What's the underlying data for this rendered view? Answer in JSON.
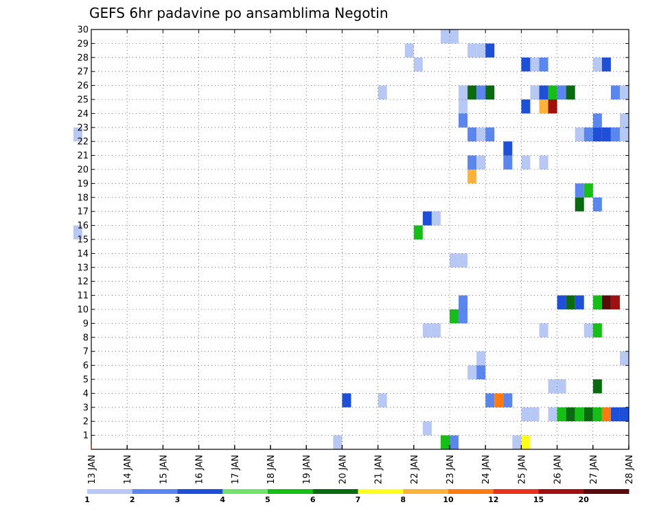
{
  "chart_data": {
    "type": "heatmap",
    "title": "GEFS 6hr padavine po ansamblima Negotin",
    "xlabel": "",
    "ylabel": "",
    "x_tick_labels": [
      "13 JAN",
      "14 JAN",
      "15 JAN",
      "16 JAN",
      "17 JAN",
      "18 JAN",
      "19 JAN",
      "20 JAN",
      "21 JAN",
      "22 JAN",
      "23 JAN",
      "24 JAN",
      "25 JAN",
      "26 JAN",
      "27 JAN",
      "28 JAN"
    ],
    "x_range_days": [
      13,
      28
    ],
    "y_tick_labels": [
      "1",
      "2",
      "3",
      "4",
      "5",
      "6",
      "7",
      "8",
      "9",
      "10",
      "11",
      "12",
      "13",
      "14",
      "15",
      "16",
      "17",
      "18",
      "19",
      "20",
      "21",
      "22",
      "23",
      "24",
      "25",
      "26",
      "27",
      "28",
      "29",
      "30"
    ],
    "y_range": [
      0,
      30
    ],
    "time_step_hours": 6,
    "grid": "dotted",
    "legend": {
      "position": "bottom",
      "labels": [
        "1",
        "2",
        "3",
        "4",
        "5",
        "6",
        "7",
        "8",
        "10",
        "12",
        "15",
        "20"
      ],
      "colors": [
        "#b8c8f5",
        "#5b86ee",
        "#1e4fd9",
        "#6fe36a",
        "#16bf16",
        "#0a6a10",
        "#ffff1e",
        "#ffb23a",
        "#ff7a10",
        "#e8321e",
        "#a01010",
        "#5a0a0a"
      ]
    },
    "cells": [
      [
        19.75,
        0,
        1
      ],
      [
        22.75,
        0,
        5
      ],
      [
        23,
        0,
        2
      ],
      [
        24.75,
        0,
        1
      ],
      [
        25,
        0,
        7
      ],
      [
        22.25,
        1,
        1
      ],
      [
        25,
        2,
        1
      ],
      [
        25.25,
        2,
        1
      ],
      [
        25.75,
        2,
        1
      ],
      [
        26,
        2,
        5
      ],
      [
        26.25,
        2,
        6
      ],
      [
        26.5,
        2,
        5
      ],
      [
        26.75,
        2,
        6
      ],
      [
        27,
        2,
        5
      ],
      [
        27.25,
        2,
        9
      ],
      [
        27.5,
        2,
        3
      ],
      [
        27.75,
        2,
        3
      ],
      [
        20,
        3,
        3
      ],
      [
        21,
        3,
        1
      ],
      [
        24,
        3,
        2
      ],
      [
        24.25,
        3,
        9
      ],
      [
        24.5,
        3,
        2
      ],
      [
        25.75,
        4,
        1
      ],
      [
        26,
        4,
        1
      ],
      [
        27,
        4,
        6
      ],
      [
        23.5,
        5,
        1
      ],
      [
        23.75,
        5,
        2
      ],
      [
        23.75,
        6,
        1
      ],
      [
        27.75,
        6,
        1
      ],
      [
        22.25,
        8,
        1
      ],
      [
        22.5,
        8,
        1
      ],
      [
        25.5,
        8,
        1
      ],
      [
        26.75,
        8,
        1
      ],
      [
        27,
        8,
        5
      ],
      [
        23,
        9,
        5
      ],
      [
        23.25,
        9,
        2
      ],
      [
        23.25,
        10,
        2
      ],
      [
        26,
        10,
        3
      ],
      [
        26.25,
        10,
        6
      ],
      [
        26.5,
        10,
        3
      ],
      [
        27,
        10,
        5
      ],
      [
        27.25,
        10,
        12
      ],
      [
        27.5,
        10,
        11
      ],
      [
        23,
        13,
        1
      ],
      [
        23.25,
        13,
        1
      ],
      [
        22,
        15,
        5
      ],
      [
        12.5,
        15,
        1
      ],
      [
        22.25,
        16,
        3
      ],
      [
        22.5,
        16,
        1
      ],
      [
        26.5,
        17,
        6
      ],
      [
        27,
        17,
        2
      ],
      [
        26.5,
        18,
        2
      ],
      [
        26.75,
        18,
        5
      ],
      [
        23.5,
        19,
        8
      ],
      [
        23.5,
        20,
        2
      ],
      [
        23.75,
        20,
        1
      ],
      [
        24.5,
        20,
        2
      ],
      [
        25,
        20,
        1
      ],
      [
        25.5,
        20,
        1
      ],
      [
        24.5,
        21,
        3
      ],
      [
        12.5,
        22,
        1
      ],
      [
        23.5,
        22,
        2
      ],
      [
        23.75,
        22,
        1
      ],
      [
        24,
        22,
        2
      ],
      [
        26.5,
        22,
        1
      ],
      [
        26.75,
        22,
        2
      ],
      [
        27,
        22,
        3
      ],
      [
        27.25,
        22,
        3
      ],
      [
        27.5,
        22,
        2
      ],
      [
        27.75,
        22,
        1
      ],
      [
        23.25,
        23,
        2
      ],
      [
        27,
        23,
        2
      ],
      [
        27.75,
        23,
        1
      ],
      [
        23.25,
        24,
        1
      ],
      [
        25,
        24,
        3
      ],
      [
        25.5,
        24,
        8
      ],
      [
        25.75,
        24,
        11
      ],
      [
        21,
        25,
        1
      ],
      [
        23.25,
        25,
        1
      ],
      [
        23.5,
        25,
        6
      ],
      [
        23.75,
        25,
        2
      ],
      [
        24,
        25,
        6
      ],
      [
        25.25,
        25,
        1
      ],
      [
        25.5,
        25,
        3
      ],
      [
        25.75,
        25,
        5
      ],
      [
        26,
        25,
        2
      ],
      [
        26.25,
        25,
        6
      ],
      [
        27.5,
        25,
        2
      ],
      [
        27.75,
        25,
        1
      ],
      [
        25,
        27,
        3
      ],
      [
        25.25,
        27,
        1
      ],
      [
        25.5,
        27,
        2
      ],
      [
        27,
        27,
        1
      ],
      [
        27.25,
        27,
        3
      ],
      [
        22,
        27,
        1
      ],
      [
        21.75,
        28,
        1
      ],
      [
        23.5,
        28,
        1
      ],
      [
        23.75,
        28,
        1
      ],
      [
        24,
        28,
        3
      ],
      [
        22.75,
        29,
        1
      ],
      [
        23,
        29,
        1
      ]
    ]
  }
}
